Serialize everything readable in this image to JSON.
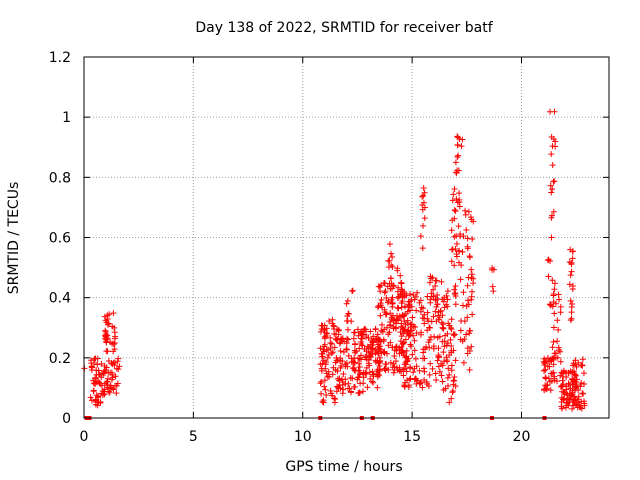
{
  "chart_data": {
    "type": "scatter",
    "title": "Day 138 of 2022, SRMTID for receiver batf",
    "xlabel": "GPS time / hours",
    "ylabel": "SRMTID / TECUs",
    "xlim": [
      0,
      24
    ],
    "ylim": [
      0,
      1.2
    ],
    "xticks": [
      0,
      5,
      10,
      15,
      20
    ],
    "yticks": [
      0,
      0.2,
      0.4,
      0.6,
      0.8,
      1,
      1.2
    ],
    "ytick_labels": [
      "0",
      "0.2",
      "0.4",
      "0.6",
      "0.8",
      "1",
      "1.2"
    ],
    "grid": true,
    "marker": "+",
    "color": "#ff0000",
    "zero_markers_x": [
      0.12,
      0.25,
      10.8,
      12.7,
      13.2,
      18.65,
      21.05
    ],
    "clusters": [
      {
        "x_range": [
          0.0,
          0.02
        ],
        "y_range": [
          0.16,
          0.17
        ],
        "count": 1
      },
      {
        "x_range": [
          0.3,
          1.0
        ],
        "y_range": [
          0.04,
          0.2
        ],
        "count": 60
      },
      {
        "x_range": [
          0.9,
          1.45
        ],
        "y_range": [
          0.22,
          0.35
        ],
        "count": 35
      },
      {
        "x_range": [
          1.0,
          1.7
        ],
        "y_range": [
          0.08,
          0.2
        ],
        "count": 35
      },
      {
        "x_range": [
          10.8,
          11.5
        ],
        "y_range": [
          0.05,
          0.33
        ],
        "count": 70
      },
      {
        "x_range": [
          11.5,
          12.8
        ],
        "y_range": [
          0.08,
          0.3
        ],
        "count": 120
      },
      {
        "x_range": [
          12.0,
          12.3
        ],
        "y_range": [
          0.3,
          0.43
        ],
        "count": 10
      },
      {
        "x_range": [
          12.8,
          13.5
        ],
        "y_range": [
          0.1,
          0.3
        ],
        "count": 70
      },
      {
        "x_range": [
          13.4,
          14.6
        ],
        "y_range": [
          0.15,
          0.45
        ],
        "count": 140
      },
      {
        "x_range": [
          13.9,
          14.1
        ],
        "y_range": [
          0.45,
          0.59
        ],
        "count": 10
      },
      {
        "x_range": [
          14.3,
          14.5
        ],
        "y_range": [
          0.4,
          0.51
        ],
        "count": 6
      },
      {
        "x_range": [
          14.5,
          15.8
        ],
        "y_range": [
          0.1,
          0.42
        ],
        "count": 130
      },
      {
        "x_range": [
          15.4,
          15.6
        ],
        "y_range": [
          0.55,
          0.77
        ],
        "count": 12
      },
      {
        "x_range": [
          15.8,
          16.4
        ],
        "y_range": [
          0.12,
          0.48
        ],
        "count": 60
      },
      {
        "x_range": [
          16.4,
          17.0
        ],
        "y_range": [
          0.05,
          0.45
        ],
        "count": 60
      },
      {
        "x_range": [
          16.8,
          17.2
        ],
        "y_range": [
          0.5,
          0.8
        ],
        "count": 30
      },
      {
        "x_range": [
          17.0,
          17.3
        ],
        "y_range": [
          0.8,
          0.94
        ],
        "count": 14
      },
      {
        "x_range": [
          17.2,
          17.8
        ],
        "y_range": [
          0.15,
          0.7
        ],
        "count": 50
      },
      {
        "x_range": [
          18.65,
          18.75
        ],
        "y_range": [
          0.42,
          0.5
        ],
        "count": 5
      },
      {
        "x_range": [
          21.0,
          21.4
        ],
        "y_range": [
          0.08,
          0.2
        ],
        "count": 30
      },
      {
        "x_range": [
          21.2,
          21.5
        ],
        "y_range": [
          0.3,
          0.55
        ],
        "count": 10
      },
      {
        "x_range": [
          21.3,
          21.55
        ],
        "y_range": [
          0.6,
          1.02
        ],
        "count": 18
      },
      {
        "x_range": [
          21.4,
          21.8
        ],
        "y_range": [
          0.12,
          0.48
        ],
        "count": 35
      },
      {
        "x_range": [
          21.8,
          22.5
        ],
        "y_range": [
          0.03,
          0.16
        ],
        "count": 70
      },
      {
        "x_range": [
          22.2,
          22.4
        ],
        "y_range": [
          0.3,
          0.59
        ],
        "count": 18
      },
      {
        "x_range": [
          22.3,
          22.9
        ],
        "y_range": [
          0.03,
          0.2
        ],
        "count": 45
      }
    ]
  }
}
